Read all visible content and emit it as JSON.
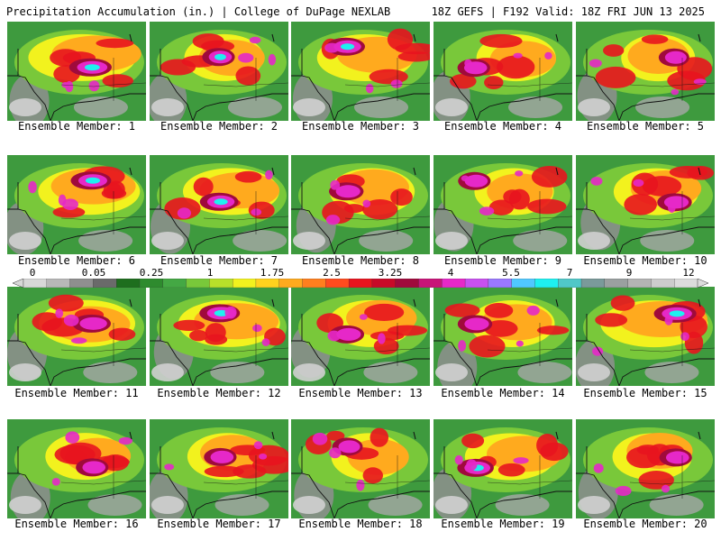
{
  "header": {
    "left": "Precipitation Accumulation (in.) | College of DuPage NEXLAB",
    "right": "18Z GEFS | F192 Valid: 18Z FRI JUN 13 2025"
  },
  "members": [
    {
      "label": "Ensemble Member: 1",
      "intensity": 0.8,
      "core": "cyan"
    },
    {
      "label": "Ensemble Member: 2",
      "intensity": 0.55,
      "core": "cyan"
    },
    {
      "label": "Ensemble Member: 3",
      "intensity": 0.7,
      "core": "cyan"
    },
    {
      "label": "Ensemble Member: 4",
      "intensity": 0.55,
      "core": "magenta"
    },
    {
      "label": "Ensemble Member: 5",
      "intensity": 0.5,
      "core": "magenta"
    },
    {
      "label": "Ensemble Member: 6",
      "intensity": 0.75,
      "core": "cyan"
    },
    {
      "label": "Ensemble Member: 7",
      "intensity": 0.7,
      "core": "cyan"
    },
    {
      "label": "Ensemble Member: 8",
      "intensity": 0.6,
      "core": "magenta"
    },
    {
      "label": "Ensemble Member: 9",
      "intensity": 0.55,
      "core": "magenta"
    },
    {
      "label": "Ensemble Member: 10",
      "intensity": 0.6,
      "core": "magenta"
    },
    {
      "label": "Ensemble Member: 11",
      "intensity": 0.7,
      "core": "magenta"
    },
    {
      "label": "Ensemble Member: 12",
      "intensity": 0.75,
      "core": "cyan"
    },
    {
      "label": "Ensemble Member: 13",
      "intensity": 0.6,
      "core": "magenta"
    },
    {
      "label": "Ensemble Member: 14",
      "intensity": 0.6,
      "core": "magenta"
    },
    {
      "label": "Ensemble Member: 15",
      "intensity": 0.8,
      "core": "cyan"
    },
    {
      "label": "Ensemble Member: 16",
      "intensity": 0.55,
      "core": "magenta"
    },
    {
      "label": "Ensemble Member: 17",
      "intensity": 0.55,
      "core": "magenta"
    },
    {
      "label": "Ensemble Member: 18",
      "intensity": 0.5,
      "core": "magenta"
    },
    {
      "label": "Ensemble Member: 19",
      "intensity": 0.65,
      "core": "cyan"
    },
    {
      "label": "Ensemble Member: 20",
      "intensity": 0.55,
      "core": "magenta"
    }
  ],
  "colorbar": {
    "labels": [
      "0",
      "0.05",
      "0.25",
      "1",
      "1.75",
      "2.5",
      "3.25",
      "4",
      "5.5",
      "7",
      "9",
      "12"
    ],
    "colors": [
      "#d8d8d8",
      "#b8b8b8",
      "#8f8f8f",
      "#6a6a6a",
      "#1e6e1e",
      "#2e8b2e",
      "#44a844",
      "#79c83a",
      "#b8e02a",
      "#f2f21e",
      "#ffd21e",
      "#ffaa1e",
      "#ff7f1e",
      "#ff4b1e",
      "#e8141e",
      "#c80a28",
      "#a00a3c",
      "#c81478",
      "#e628c8",
      "#c850f0",
      "#9a78ff",
      "#50c8ff",
      "#1ef0f0",
      "#50c8c8",
      "#7a9a9a",
      "#9aa0a0",
      "#b4b4b4",
      "#cccccc",
      "#dcdcdc"
    ]
  }
}
